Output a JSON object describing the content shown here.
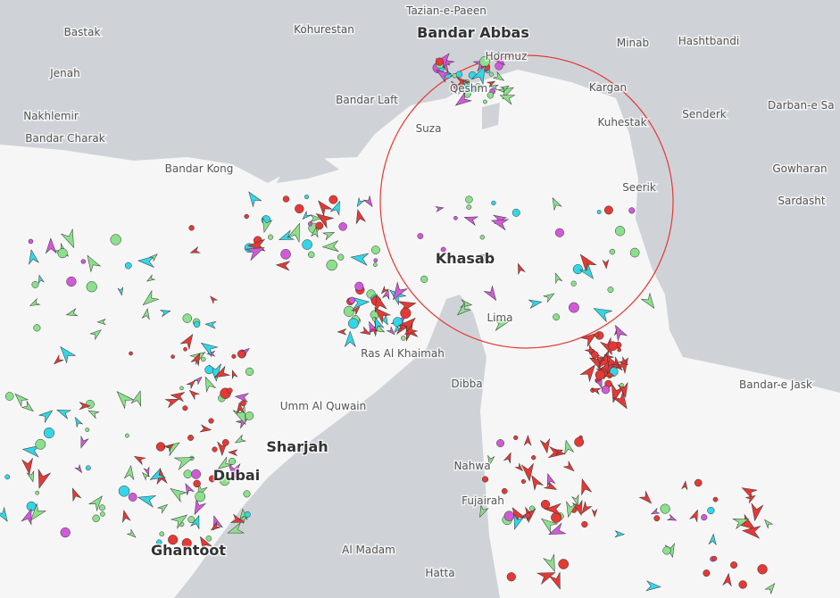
{
  "map": {
    "places": [
      {
        "label": "Tazian-e-Paeen"
      },
      {
        "label": "Bandar Abbas"
      },
      {
        "label": "Minab"
      },
      {
        "label": "Hashtbandi"
      },
      {
        "label": "Bastak"
      },
      {
        "label": "Kohurestan"
      },
      {
        "label": "Hormuz"
      },
      {
        "label": "Jenah"
      },
      {
        "label": "Qeshm"
      },
      {
        "label": "Bandar Laft"
      },
      {
        "label": "Kargan"
      },
      {
        "label": "Nakhlemir"
      },
      {
        "label": "Bandar Charak"
      },
      {
        "label": "Kuhestak"
      },
      {
        "label": "Senderk"
      },
      {
        "label": "Darban-e Sa"
      },
      {
        "label": "Suza"
      },
      {
        "label": "Bandar Kong"
      },
      {
        "label": "Gowharan"
      },
      {
        "label": "Seerik"
      },
      {
        "label": "Sardasht"
      },
      {
        "label": "Khasab"
      },
      {
        "label": "Lima"
      },
      {
        "label": "Ras Al Khaimah"
      },
      {
        "label": "Bandar-e Jask"
      },
      {
        "label": "Dibba"
      },
      {
        "label": "Umm Al Quwain"
      },
      {
        "label": "Sharjah"
      },
      {
        "label": "Dubai"
      },
      {
        "label": "Nahwa"
      },
      {
        "label": "Fujairah"
      },
      {
        "label": "Al Madam"
      },
      {
        "label": "Hatta"
      },
      {
        "label": "Ghantoot"
      }
    ]
  }
}
